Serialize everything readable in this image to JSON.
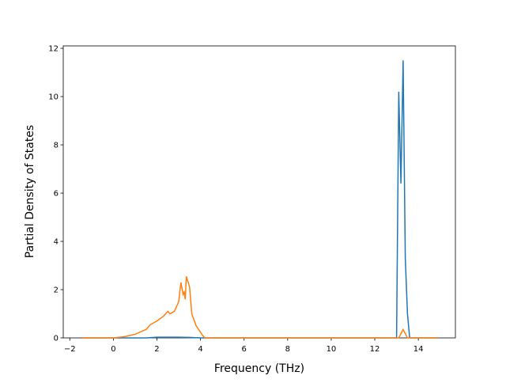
{
  "chart_data": {
    "type": "line",
    "xlabel": "Frequency (THz)",
    "ylabel": "Partial Density of States",
    "xlim": [
      -2.3,
      15.7
    ],
    "ylim": [
      0,
      12.1
    ],
    "xticks": [
      {
        "value": -2,
        "label": "−2"
      },
      0,
      2,
      4,
      6,
      8,
      10,
      12,
      14
    ],
    "yticks": [
      0,
      2,
      4,
      6,
      8,
      10,
      12
    ],
    "series": [
      {
        "color": "#1f77b4",
        "x": [
          -1.4,
          1.5,
          2.0,
          3.0,
          3.5,
          4.0,
          13.0,
          13.1,
          13.2,
          13.3,
          13.4,
          13.5,
          13.6,
          14.9
        ],
        "values": [
          0,
          0,
          0.03,
          0.03,
          0.02,
          0,
          0,
          10.2,
          6.4,
          11.5,
          3.3,
          1.0,
          0,
          0
        ]
      },
      {
        "color": "#ff7f0e",
        "x": [
          -1.4,
          0,
          0.5,
          1.0,
          1.5,
          1.7,
          2.0,
          2.3,
          2.5,
          2.6,
          2.8,
          3.0,
          3.1,
          3.2,
          3.25,
          3.3,
          3.35,
          3.5,
          3.6,
          3.8,
          4.1,
          4.2,
          13.1,
          13.3,
          13.5,
          14.9
        ],
        "values": [
          0,
          0,
          0.05,
          0.15,
          0.35,
          0.55,
          0.7,
          0.9,
          1.1,
          1.0,
          1.1,
          1.5,
          2.3,
          1.8,
          1.9,
          1.6,
          2.55,
          2.1,
          1.0,
          0.5,
          0.1,
          0,
          0,
          0.35,
          0,
          0
        ]
      }
    ]
  }
}
